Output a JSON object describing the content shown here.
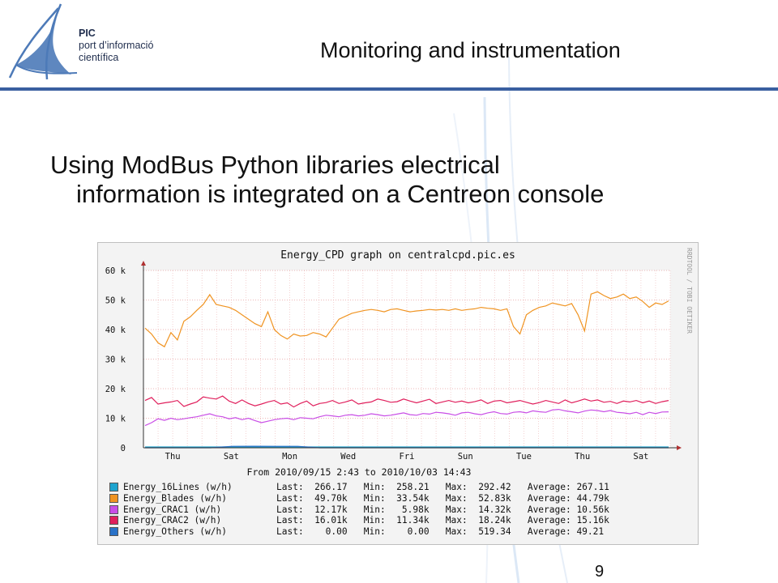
{
  "header": {
    "org_abbr": "PIC",
    "org_line1": "port d’informació",
    "org_line2": "científica",
    "title": "Monitoring and instrumentation"
  },
  "bullet": {
    "line1": "Using ModBus Python libraries electrical",
    "line2": "information is integrated on a Centreon console"
  },
  "page_number": "9",
  "colors": {
    "accent": "#3a5fa0",
    "logo": "#4d7ab8"
  },
  "chart_data": {
    "type": "line",
    "title": "Energy_CPD graph on centralcpd.pic.es",
    "watermark": "RRDTOOL / TOBI OETIKER",
    "period": "From 2010/09/15 2:43 to 2010/10/03 14:43",
    "ylim": [
      0,
      60000
    ],
    "y_ticks": [
      {
        "value": 0,
        "label": "0"
      },
      {
        "value": 10000,
        "label": "10 k"
      },
      {
        "value": 20000,
        "label": "20 k"
      },
      {
        "value": 30000,
        "label": "30 k"
      },
      {
        "value": 40000,
        "label": "40 k"
      },
      {
        "value": 50000,
        "label": "50 k"
      },
      {
        "value": 60000,
        "label": "60 k"
      }
    ],
    "x_ticks": [
      "Thu",
      "Sat",
      "Mon",
      "Wed",
      "Fri",
      "Sun",
      "Tue",
      "Thu",
      "Sat"
    ],
    "series": [
      {
        "name": "Energy_16Lines (w/h)",
        "color": "#1fa4cf",
        "last": "266.17",
        "min": "258.21",
        "max": "292.42",
        "average": "267.11",
        "values": [
          270,
          270,
          268,
          266,
          268,
          270,
          267,
          266,
          265,
          268,
          268,
          270,
          266,
          266,
          267,
          268,
          266,
          266,
          270,
          266,
          268,
          267,
          266,
          267,
          268
        ]
      },
      {
        "name": "Energy_Blades (w/h)",
        "color": "#f09422",
        "last": "49.70k",
        "min": "33.54k",
        "max": "52.83k",
        "average": "44.79k",
        "values": [
          40500,
          38500,
          35500,
          34200,
          39000,
          36500,
          42800,
          44300,
          46500,
          48500,
          51800,
          48500,
          48000,
          47500,
          46500,
          45000,
          43500,
          42000,
          41000,
          46000,
          40000,
          38000,
          36800,
          38500,
          37800,
          38000,
          39000,
          38500,
          37500,
          40500,
          43500,
          44500,
          45500,
          46000,
          46500,
          46800,
          46500,
          46000,
          46800,
          47000,
          46500,
          46000,
          46300,
          46500,
          46800,
          46600,
          46800,
          46500,
          47000,
          46500,
          46800,
          47000,
          47500,
          47200,
          47000,
          46500,
          47000,
          41000,
          38500,
          45000,
          46500,
          47500,
          48000,
          49000,
          48500,
          48000,
          48800,
          45000,
          39500,
          52000,
          52800,
          51500,
          50500,
          51000,
          52000,
          50500,
          51000,
          49500,
          47500,
          49000,
          48500,
          49700
        ]
      },
      {
        "name": "Energy_CRAC1 (w/h)",
        "color": "#c94ee6",
        "last": "12.17k",
        "min": "5.98k",
        "max": "14.32k",
        "average": "10.56k",
        "values": [
          7500,
          8500,
          9800,
          9300,
          10000,
          9500,
          9800,
          10200,
          10500,
          11000,
          11500,
          10800,
          10500,
          9800,
          10200,
          9500,
          10000,
          9200,
          8500,
          9000,
          9500,
          9800,
          10000,
          9500,
          10200,
          10000,
          9800,
          10500,
          11000,
          10800,
          10500,
          11000,
          11200,
          10800,
          11000,
          11500,
          11200,
          10800,
          11000,
          11400,
          11800,
          11200,
          11000,
          11600,
          11400,
          12000,
          11800,
          11500,
          11000,
          11800,
          12000,
          11500,
          11200,
          11800,
          12200,
          11600,
          11400,
          12000,
          12200,
          11800,
          12500,
          12200,
          12000,
          12800,
          13000,
          12500,
          12200,
          11800,
          12400,
          12800,
          12600,
          12200,
          12600,
          12000,
          11800,
          11500,
          12000,
          11200,
          12000,
          11600,
          12100,
          12170
        ]
      },
      {
        "name": "Energy_CRAC2 (w/h)",
        "color": "#e01f5c",
        "last": "16.01k",
        "min": "11.34k",
        "max": "18.24k",
        "average": "15.16k",
        "values": [
          16000,
          17000,
          14800,
          15200,
          15500,
          16000,
          14000,
          14800,
          15500,
          17200,
          16800,
          16500,
          17500,
          15800,
          15000,
          16200,
          15000,
          14200,
          14800,
          15500,
          16000,
          14800,
          15200,
          13800,
          15000,
          15800,
          14200,
          15000,
          15300,
          16000,
          15000,
          15500,
          16200,
          14800,
          15200,
          15500,
          16500,
          16000,
          15400,
          15600,
          16500,
          15800,
          15200,
          15800,
          16400,
          15000,
          15500,
          16000,
          15400,
          15800,
          15200,
          15600,
          16200,
          15000,
          15800,
          16000,
          15200,
          15600,
          16000,
          15400,
          14800,
          15300,
          16000,
          15500,
          15000,
          16200,
          15200,
          15800,
          16500,
          15800,
          16200,
          15400,
          15700,
          15000,
          15800,
          15500,
          16000,
          15200,
          15800,
          15000,
          15600,
          16010
        ]
      },
      {
        "name": "Energy_Others (w/h)",
        "color": "#2a72c8",
        "last": "0.00",
        "min": "0.00",
        "max": "519.34",
        "average": "49.21",
        "values": [
          0,
          0,
          0,
          0,
          500,
          510,
          500,
          480,
          0,
          0,
          0,
          0,
          0,
          0,
          0,
          0,
          0,
          0,
          0,
          0,
          0,
          0,
          0,
          0,
          0
        ]
      }
    ]
  }
}
